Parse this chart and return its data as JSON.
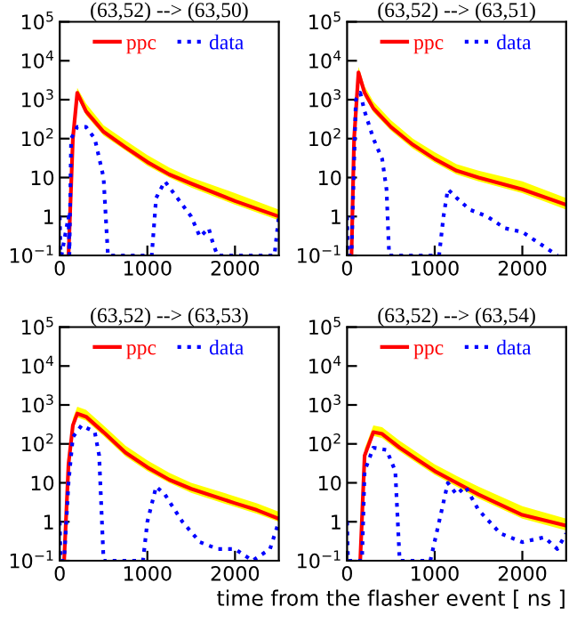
{
  "chart_data": [
    {
      "type": "line",
      "title": "(63,52) --> (63,50)",
      "log": "y",
      "xlim": [
        0,
        2500
      ],
      "ylim": [
        0.1,
        100000
      ],
      "xticks": [
        0,
        1000,
        2000
      ],
      "yticks": [
        {
          "value": 0.1,
          "label": "10$^{−1}$"
        },
        1,
        10,
        {
          "value": 100,
          "label": "10$^{2}$"
        },
        {
          "value": 1000,
          "label": "10$^{3}$"
        },
        {
          "value": 10000,
          "label": "10$^{4}$"
        },
        {
          "value": 100000,
          "label": "10$^{5}$"
        }
      ],
      "legend": "top",
      "grid": false,
      "series": [
        {
          "name": "ppc",
          "color": "#ff0000",
          "line_style": "solid",
          "x": [
            100,
            150,
            200,
            300,
            500,
            750,
            1000,
            1250,
            1500,
            2000,
            2500
          ],
          "values": [
            0.1,
            100,
            1500,
            500,
            150,
            60,
            25,
            12,
            7,
            2.5,
            1
          ],
          "lower": [
            0.1,
            80,
            1200,
            400,
            120,
            50,
            20,
            10,
            5.5,
            2,
            0.8
          ],
          "upper": [
            0.1,
            150,
            2000,
            800,
            220,
            90,
            38,
            18,
            10,
            4,
            1.5
          ]
        },
        {
          "name": "data",
          "color": "#0000ff",
          "line_style": "dotted",
          "x": [
            0,
            10,
            20,
            100,
            110,
            130,
            200,
            300,
            400,
            500,
            550,
            1050,
            1100,
            1200,
            1300,
            1400,
            1500,
            1600,
            1700,
            1750,
            1800,
            2450,
            2500
          ],
          "values": [
            1,
            0.1,
            0.1,
            1,
            0.1,
            100,
            200,
            200,
            100,
            10,
            0.1,
            0.1,
            3,
            8,
            4,
            2,
            1,
            0.3,
            0.5,
            0.2,
            0.1,
            0.1,
            1
          ]
        }
      ]
    },
    {
      "type": "line",
      "title": "(63,52) --> (63,51)",
      "log": "y",
      "xlim": [
        0,
        2500
      ],
      "ylim": [
        0.1,
        100000
      ],
      "xticks": [
        0,
        1000,
        2000
      ],
      "yticks": [
        {
          "value": 0.1,
          "label": "10$^{−1}$"
        },
        1,
        10,
        {
          "value": 100,
          "label": "10$^{2}$"
        },
        {
          "value": 1000,
          "label": "10$^{3}$"
        },
        {
          "value": 10000,
          "label": "10$^{4}$"
        },
        {
          "value": 100000,
          "label": "10$^{5}$"
        }
      ],
      "legend": "top",
      "grid": false,
      "series": [
        {
          "name": "ppc",
          "color": "#ff0000",
          "line_style": "solid",
          "x": [
            50,
            80,
            130,
            200,
            300,
            500,
            750,
            1000,
            1250,
            1500,
            2000,
            2500
          ],
          "values": [
            0.1,
            100,
            5000,
            1500,
            600,
            200,
            70,
            30,
            15,
            10,
            5,
            2
          ],
          "lower": [
            0.1,
            80,
            4000,
            1200,
            480,
            160,
            55,
            24,
            12,
            8,
            4,
            1.5
          ],
          "upper": [
            0.1,
            150,
            7000,
            2200,
            900,
            300,
            100,
            45,
            22,
            15,
            8,
            3
          ]
        },
        {
          "name": "data",
          "color": "#0000ff",
          "line_style": "dotted",
          "x": [
            0,
            10,
            50,
            100,
            150,
            200,
            300,
            400,
            450,
            480,
            1050,
            1100,
            1150,
            1250,
            1400,
            1600,
            1800,
            2000,
            2200,
            2400
          ],
          "values": [
            1,
            0.1,
            0.1,
            1000,
            1500,
            500,
            100,
            30,
            5,
            0.1,
            0.1,
            1,
            5,
            3,
            1.5,
            1,
            0.5,
            0.4,
            0.2,
            0.1
          ]
        }
      ]
    },
    {
      "type": "line",
      "title": "(63,52) --> (63,53)",
      "log": "y",
      "xlim": [
        0,
        2500
      ],
      "ylim": [
        0.1,
        100000
      ],
      "xticks": [
        0,
        1000,
        2000
      ],
      "yticks": [
        {
          "value": 0.1,
          "label": "10$^{−1}$"
        },
        1,
        10,
        {
          "value": 100,
          "label": "10$^{2}$"
        },
        {
          "value": 1000,
          "label": "10$^{3}$"
        },
        {
          "value": 10000,
          "label": "10$^{4}$"
        },
        {
          "value": 100000,
          "label": "10$^{5}$"
        }
      ],
      "legend": "top",
      "grid": false,
      "series": [
        {
          "name": "ppc",
          "color": "#ff0000",
          "line_style": "solid",
          "x": [
            50,
            100,
            150,
            200,
            300,
            500,
            750,
            1000,
            1250,
            1500,
            2000,
            2250,
            2500
          ],
          "values": [
            0.1,
            30,
            300,
            600,
            500,
            200,
            60,
            25,
            12,
            7,
            3,
            2,
            1.2
          ],
          "lower": [
            0.1,
            24,
            240,
            480,
            400,
            160,
            48,
            20,
            10,
            5.5,
            2.4,
            1.6,
            1
          ],
          "upper": [
            0.1,
            45,
            450,
            900,
            750,
            300,
            90,
            38,
            18,
            10,
            4.5,
            3,
            1.8
          ]
        },
        {
          "name": "data",
          "color": "#0000ff",
          "line_style": "dotted",
          "x": [
            0,
            10,
            50,
            100,
            150,
            250,
            400,
            450,
            500,
            950,
            1000,
            1100,
            1200,
            1400,
            1600,
            1800,
            2000,
            2200,
            2400,
            2500
          ],
          "values": [
            1,
            0.1,
            0.1,
            10,
            150,
            300,
            200,
            50,
            0.1,
            0.1,
            1,
            8,
            5,
            1,
            0.3,
            0.2,
            0.2,
            0.1,
            0.2,
            1
          ]
        }
      ]
    },
    {
      "type": "line",
      "title": "(63,52) --> (63,54)",
      "xlabel": "time from the flasher event [ ns ]",
      "log": "y",
      "xlim": [
        0,
        2500
      ],
      "ylim": [
        0.1,
        100000
      ],
      "xticks": [
        0,
        1000,
        2000
      ],
      "yticks": [
        {
          "value": 0.1,
          "label": "10$^{−1}$"
        },
        1,
        10,
        {
          "value": 100,
          "label": "10$^{2}$"
        },
        {
          "value": 1000,
          "label": "10$^{3}$"
        },
        {
          "value": 10000,
          "label": "10$^{4}$"
        },
        {
          "value": 100000,
          "label": "10$^{5}$"
        }
      ],
      "legend": "top",
      "grid": false,
      "series": [
        {
          "name": "ppc",
          "color": "#ff0000",
          "line_style": "solid",
          "x": [
            150,
            200,
            300,
            400,
            600,
            800,
            1000,
            1250,
            1500,
            2000,
            2500
          ],
          "values": [
            0.1,
            50,
            200,
            180,
            80,
            40,
            20,
            10,
            5,
            1.5,
            0.8
          ],
          "lower": [
            0.1,
            40,
            160,
            140,
            64,
            32,
            16,
            8,
            4,
            1.2,
            0.6
          ],
          "upper": [
            0.1,
            75,
            300,
            270,
            120,
            60,
            30,
            15,
            8,
            2.5,
            1.2
          ]
        },
        {
          "name": "data",
          "color": "#0000ff",
          "line_style": "dotted",
          "x": [
            0,
            10,
            170,
            200,
            300,
            450,
            550,
            600,
            950,
            1050,
            1150,
            1250,
            1350,
            1500,
            1750,
            2000,
            2250,
            2400,
            2500
          ],
          "values": [
            1,
            0.1,
            0.1,
            20,
            80,
            70,
            20,
            0.1,
            0.1,
            1,
            10,
            5,
            8,
            2,
            0.5,
            0.3,
            0.4,
            0.2,
            0.5
          ]
        }
      ]
    }
  ]
}
